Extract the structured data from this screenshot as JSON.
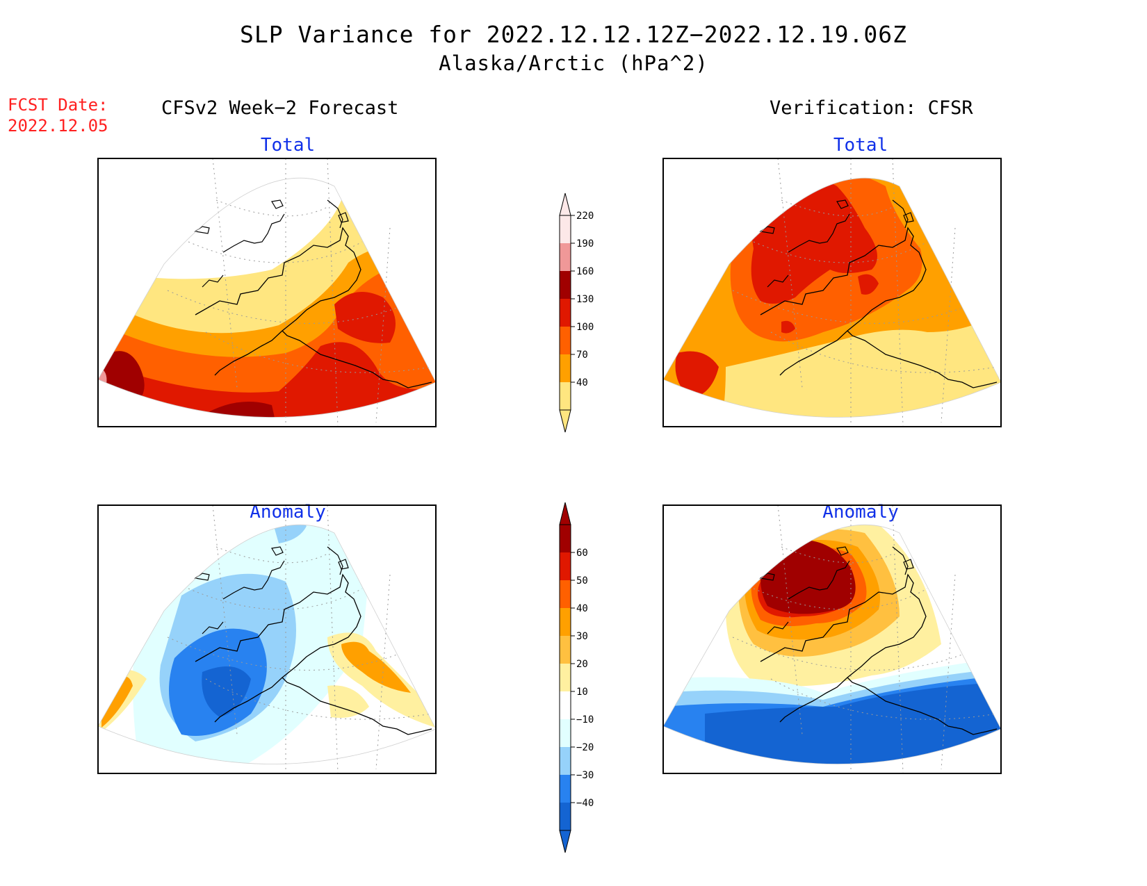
{
  "title": "SLP Variance for 2022.12.12.12Z−2022.12.19.06Z",
  "subtitle": "Alaska/Arctic (hPa^2)",
  "fcst_date_label": "FCST Date:",
  "fcst_date_value": "2022.12.05",
  "left_column_heading": "CFSv2 Week−2 Forecast",
  "right_column_heading": "Verification: CFSR",
  "panels": {
    "forecast_total": {
      "label": "Total"
    },
    "forecast_anomaly": {
      "label": "Anomaly"
    },
    "verification_total": {
      "label": "Total"
    },
    "verification_anomaly": {
      "label": "Anomaly"
    }
  },
  "colorbars": {
    "total": {
      "levels": [
        "40",
        "70",
        "100",
        "130",
        "160",
        "190",
        "220"
      ],
      "colors": [
        "#ffe680",
        "#ffa000",
        "#ff6000",
        "#e01800",
        "#a00000",
        "#f09898",
        "#fce8e8"
      ]
    },
    "anomaly": {
      "levels": [
        "−40",
        "−30",
        "−20",
        "−10",
        "10",
        "20",
        "30",
        "40",
        "50",
        "60"
      ],
      "colors": [
        "#1464d2",
        "#2882f0",
        "#96d2fa",
        "#e1ffff",
        "#ffffff",
        "#fff0a0",
        "#ffc040",
        "#ffa000",
        "#ff6000",
        "#e01800",
        "#a00000"
      ]
    },
    "fill_colors": {
      "yellow": "#ffe680",
      "lightorange": "#ffc040",
      "orange": "#ffa000",
      "darkorange": "#ff6000",
      "red": "#e01800",
      "darkred": "#a00000",
      "pink": "#f09898",
      "blue_dark": "#1464d2",
      "blue": "#2882f0",
      "blue_light": "#96d2fa",
      "cyan_light": "#e1ffff",
      "pale_yellow": "#fff0a0"
    }
  }
}
